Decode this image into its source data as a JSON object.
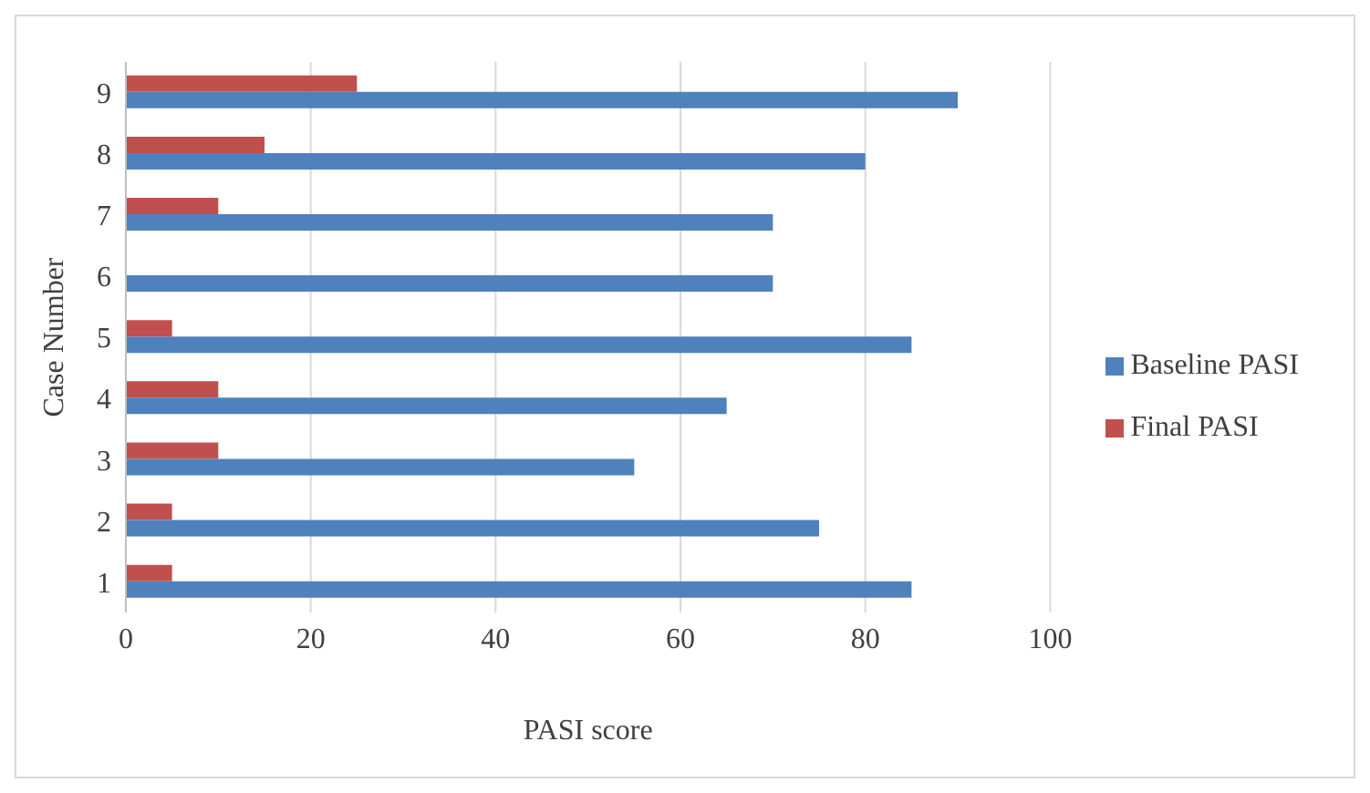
{
  "chart_data": {
    "type": "bar",
    "orientation": "horizontal",
    "xlabel": "PASI score",
    "ylabel": "Case Number",
    "categories": [
      "9",
      "8",
      "7",
      "6",
      "5",
      "4",
      "3",
      "2",
      "1"
    ],
    "series": [
      {
        "name": "Final PASI",
        "color": "#c0504d",
        "values": [
          25,
          15,
          10,
          0,
          5,
          10,
          10,
          5,
          5
        ]
      },
      {
        "name": "Baseline PASI",
        "color": "#4f81bd",
        "values": [
          90,
          80,
          70,
          70,
          85,
          65,
          55,
          75,
          85
        ]
      }
    ],
    "xlim": [
      0,
      100
    ],
    "xticks": [
      0,
      20,
      40,
      60,
      80,
      100
    ],
    "grid": "x",
    "legend": "right"
  }
}
